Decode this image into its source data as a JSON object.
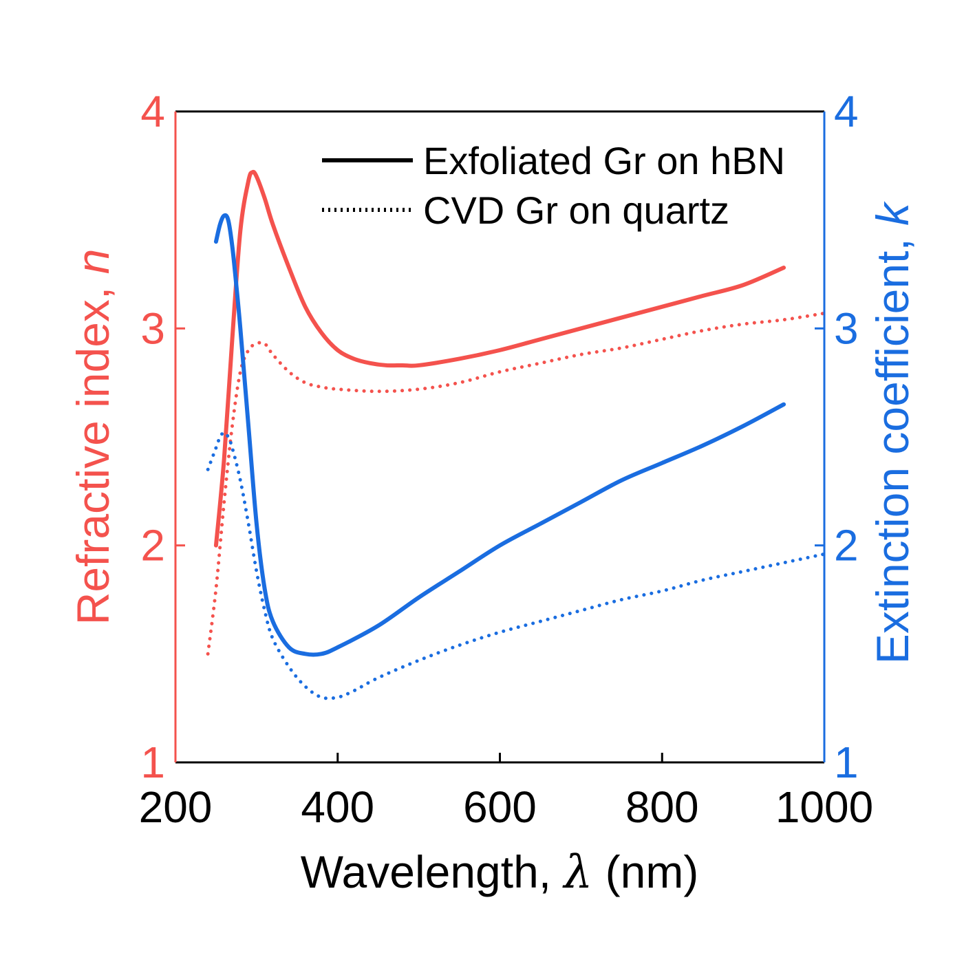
{
  "chart_data": {
    "type": "line",
    "title": "",
    "xlabel": "Wavelength, ",
    "xlabel_symbol": "λ",
    "xlabel_unit": " (nm)",
    "ylabel_left": "Refractive index, ",
    "ylabel_left_symbol": "n",
    "ylabel_right": "Extinction coefficient, ",
    "ylabel_right_symbol": "k",
    "xlim": [
      200,
      1000
    ],
    "ylim_left": [
      1,
      4
    ],
    "ylim_right": [
      1,
      4
    ],
    "x_ticks": [
      200,
      400,
      600,
      800,
      1000
    ],
    "x_tick_labels": [
      "200",
      "400",
      "600",
      "800",
      "1000"
    ],
    "y_ticks_left": [
      1,
      2,
      3,
      4
    ],
    "y_tick_labels_left": [
      "1",
      "2",
      "3",
      "4"
    ],
    "y_ticks_right": [
      1,
      2,
      3,
      4
    ],
    "y_tick_labels_right": [
      "1",
      "2",
      "3",
      "4"
    ],
    "colors": {
      "n": "#f4524d",
      "k": "#1a6de0",
      "axis": "#000000"
    },
    "legend": [
      {
        "label": "Exfoliated Gr on hBN",
        "style": "solid"
      },
      {
        "label": "CVD Gr on quartz",
        "style": "dotted"
      }
    ],
    "series": [
      {
        "name": "n - Exfoliated Gr on hBN",
        "axis": "left",
        "style": "solid",
        "color": "#f4524d",
        "x": [
          250,
          260,
          270,
          280,
          290,
          295,
          300,
          310,
          320,
          340,
          360,
          380,
          400,
          420,
          440,
          460,
          480,
          500,
          550,
          600,
          650,
          700,
          750,
          800,
          850,
          900,
          950
        ],
        "y": [
          2.0,
          2.4,
          2.95,
          3.45,
          3.68,
          3.72,
          3.7,
          3.6,
          3.48,
          3.28,
          3.1,
          2.98,
          2.9,
          2.86,
          2.84,
          2.83,
          2.83,
          2.83,
          2.86,
          2.9,
          2.95,
          3.0,
          3.05,
          3.1,
          3.15,
          3.2,
          3.28
        ]
      },
      {
        "name": "n - CVD Gr on quartz",
        "axis": "left",
        "style": "dotted",
        "color": "#f4524d",
        "x": [
          240,
          250,
          260,
          270,
          280,
          290,
          300,
          310,
          320,
          340,
          360,
          380,
          400,
          450,
          500,
          550,
          600,
          650,
          700,
          750,
          800,
          850,
          900,
          950,
          1000
        ],
        "y": [
          1.5,
          1.8,
          2.2,
          2.55,
          2.8,
          2.9,
          2.93,
          2.93,
          2.88,
          2.8,
          2.75,
          2.73,
          2.72,
          2.71,
          2.72,
          2.75,
          2.8,
          2.84,
          2.88,
          2.91,
          2.95,
          2.99,
          3.02,
          3.04,
          3.07
        ]
      },
      {
        "name": "k - Exfoliated Gr on hBN",
        "axis": "right",
        "style": "solid",
        "color": "#1a6de0",
        "x": [
          250,
          255,
          260,
          265,
          270,
          275,
          280,
          290,
          300,
          310,
          320,
          340,
          360,
          380,
          400,
          450,
          500,
          550,
          600,
          650,
          700,
          750,
          800,
          850,
          900,
          950
        ],
        "y": [
          3.4,
          3.48,
          3.52,
          3.5,
          3.38,
          3.2,
          3.0,
          2.55,
          2.1,
          1.8,
          1.65,
          1.53,
          1.5,
          1.5,
          1.53,
          1.63,
          1.76,
          1.88,
          2.0,
          2.1,
          2.2,
          2.3,
          2.38,
          2.46,
          2.55,
          2.65
        ]
      },
      {
        "name": "k - CVD Gr on quartz",
        "axis": "right",
        "style": "dotted",
        "color": "#1a6de0",
        "x": [
          240,
          250,
          255,
          260,
          265,
          270,
          280,
          290,
          300,
          310,
          320,
          340,
          360,
          380,
          400,
          420,
          450,
          500,
          550,
          600,
          650,
          700,
          750,
          800,
          850,
          900,
          950,
          1000
        ],
        "y": [
          2.35,
          2.45,
          2.5,
          2.52,
          2.5,
          2.45,
          2.3,
          2.1,
          1.88,
          1.7,
          1.57,
          1.44,
          1.35,
          1.3,
          1.3,
          1.33,
          1.39,
          1.47,
          1.54,
          1.6,
          1.65,
          1.7,
          1.75,
          1.79,
          1.84,
          1.88,
          1.92,
          1.96
        ]
      }
    ]
  }
}
